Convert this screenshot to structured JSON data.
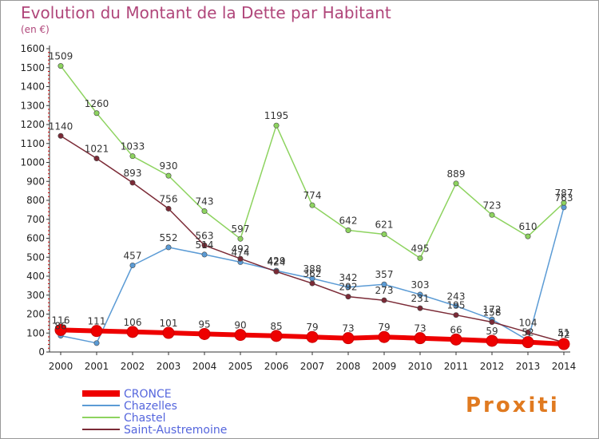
{
  "chart_data": {
    "type": "line",
    "title": "Evolution du Montant de la Dette par Habitant",
    "subtitle": "(en €)",
    "x": [
      "2000",
      "2001",
      "2002",
      "2003",
      "2004",
      "2005",
      "2006",
      "2007",
      "2008",
      "2009",
      "2010",
      "2011",
      "2012",
      "2013",
      "2014"
    ],
    "ylim": [
      0,
      1600
    ],
    "yticks": [
      0,
      100,
      200,
      300,
      400,
      500,
      600,
      700,
      800,
      900,
      1000,
      1100,
      1200,
      1300,
      1400,
      1500,
      1600
    ],
    "grid": false,
    "legend_position": "bottom-left",
    "series": [
      {
        "name": "CRONCE",
        "color": "#ee0000",
        "width": 6,
        "values": [
          116,
          111,
          106,
          101,
          95,
          90,
          85,
          79,
          73,
          79,
          73,
          66,
          59,
          52,
          42
        ],
        "labels": [
          116,
          111,
          106,
          101,
          95,
          90,
          85,
          79,
          73,
          79,
          73,
          66,
          59,
          52,
          42
        ]
      },
      {
        "name": "Chazelles",
        "color": "#5b9bd5",
        "width": 1.5,
        "values": [
          86,
          47,
          457,
          552,
          514,
          474,
          429,
          388,
          342,
          357,
          303,
          243,
          172,
          62,
          763
        ],
        "labels": [
          86,
          null,
          457,
          552,
          514,
          474,
          429,
          388,
          342,
          357,
          303,
          243,
          172,
          null,
          763
        ]
      },
      {
        "name": "Chastel",
        "color": "#8dd35f",
        "width": 1.5,
        "values": [
          1509,
          1260,
          1033,
          930,
          743,
          597,
          1195,
          774,
          642,
          621,
          495,
          889,
          723,
          610,
          787
        ],
        "labels": [
          1509,
          1260,
          1033,
          930,
          743,
          597,
          1195,
          774,
          642,
          621,
          495,
          889,
          723,
          610,
          787
        ]
      },
      {
        "name": "Saint-Austremoine",
        "color": "#7b2a36",
        "width": 1.5,
        "values": [
          1140,
          1021,
          893,
          756,
          563,
          492,
          424,
          362,
          292,
          273,
          231,
          195,
          158,
          104,
          51
        ],
        "labels": [
          1140,
          1021,
          893,
          756,
          563,
          492,
          424,
          362,
          292,
          273,
          231,
          195,
          158,
          104,
          51
        ]
      }
    ]
  },
  "brand": {
    "logo_text": "Proxiti"
  }
}
